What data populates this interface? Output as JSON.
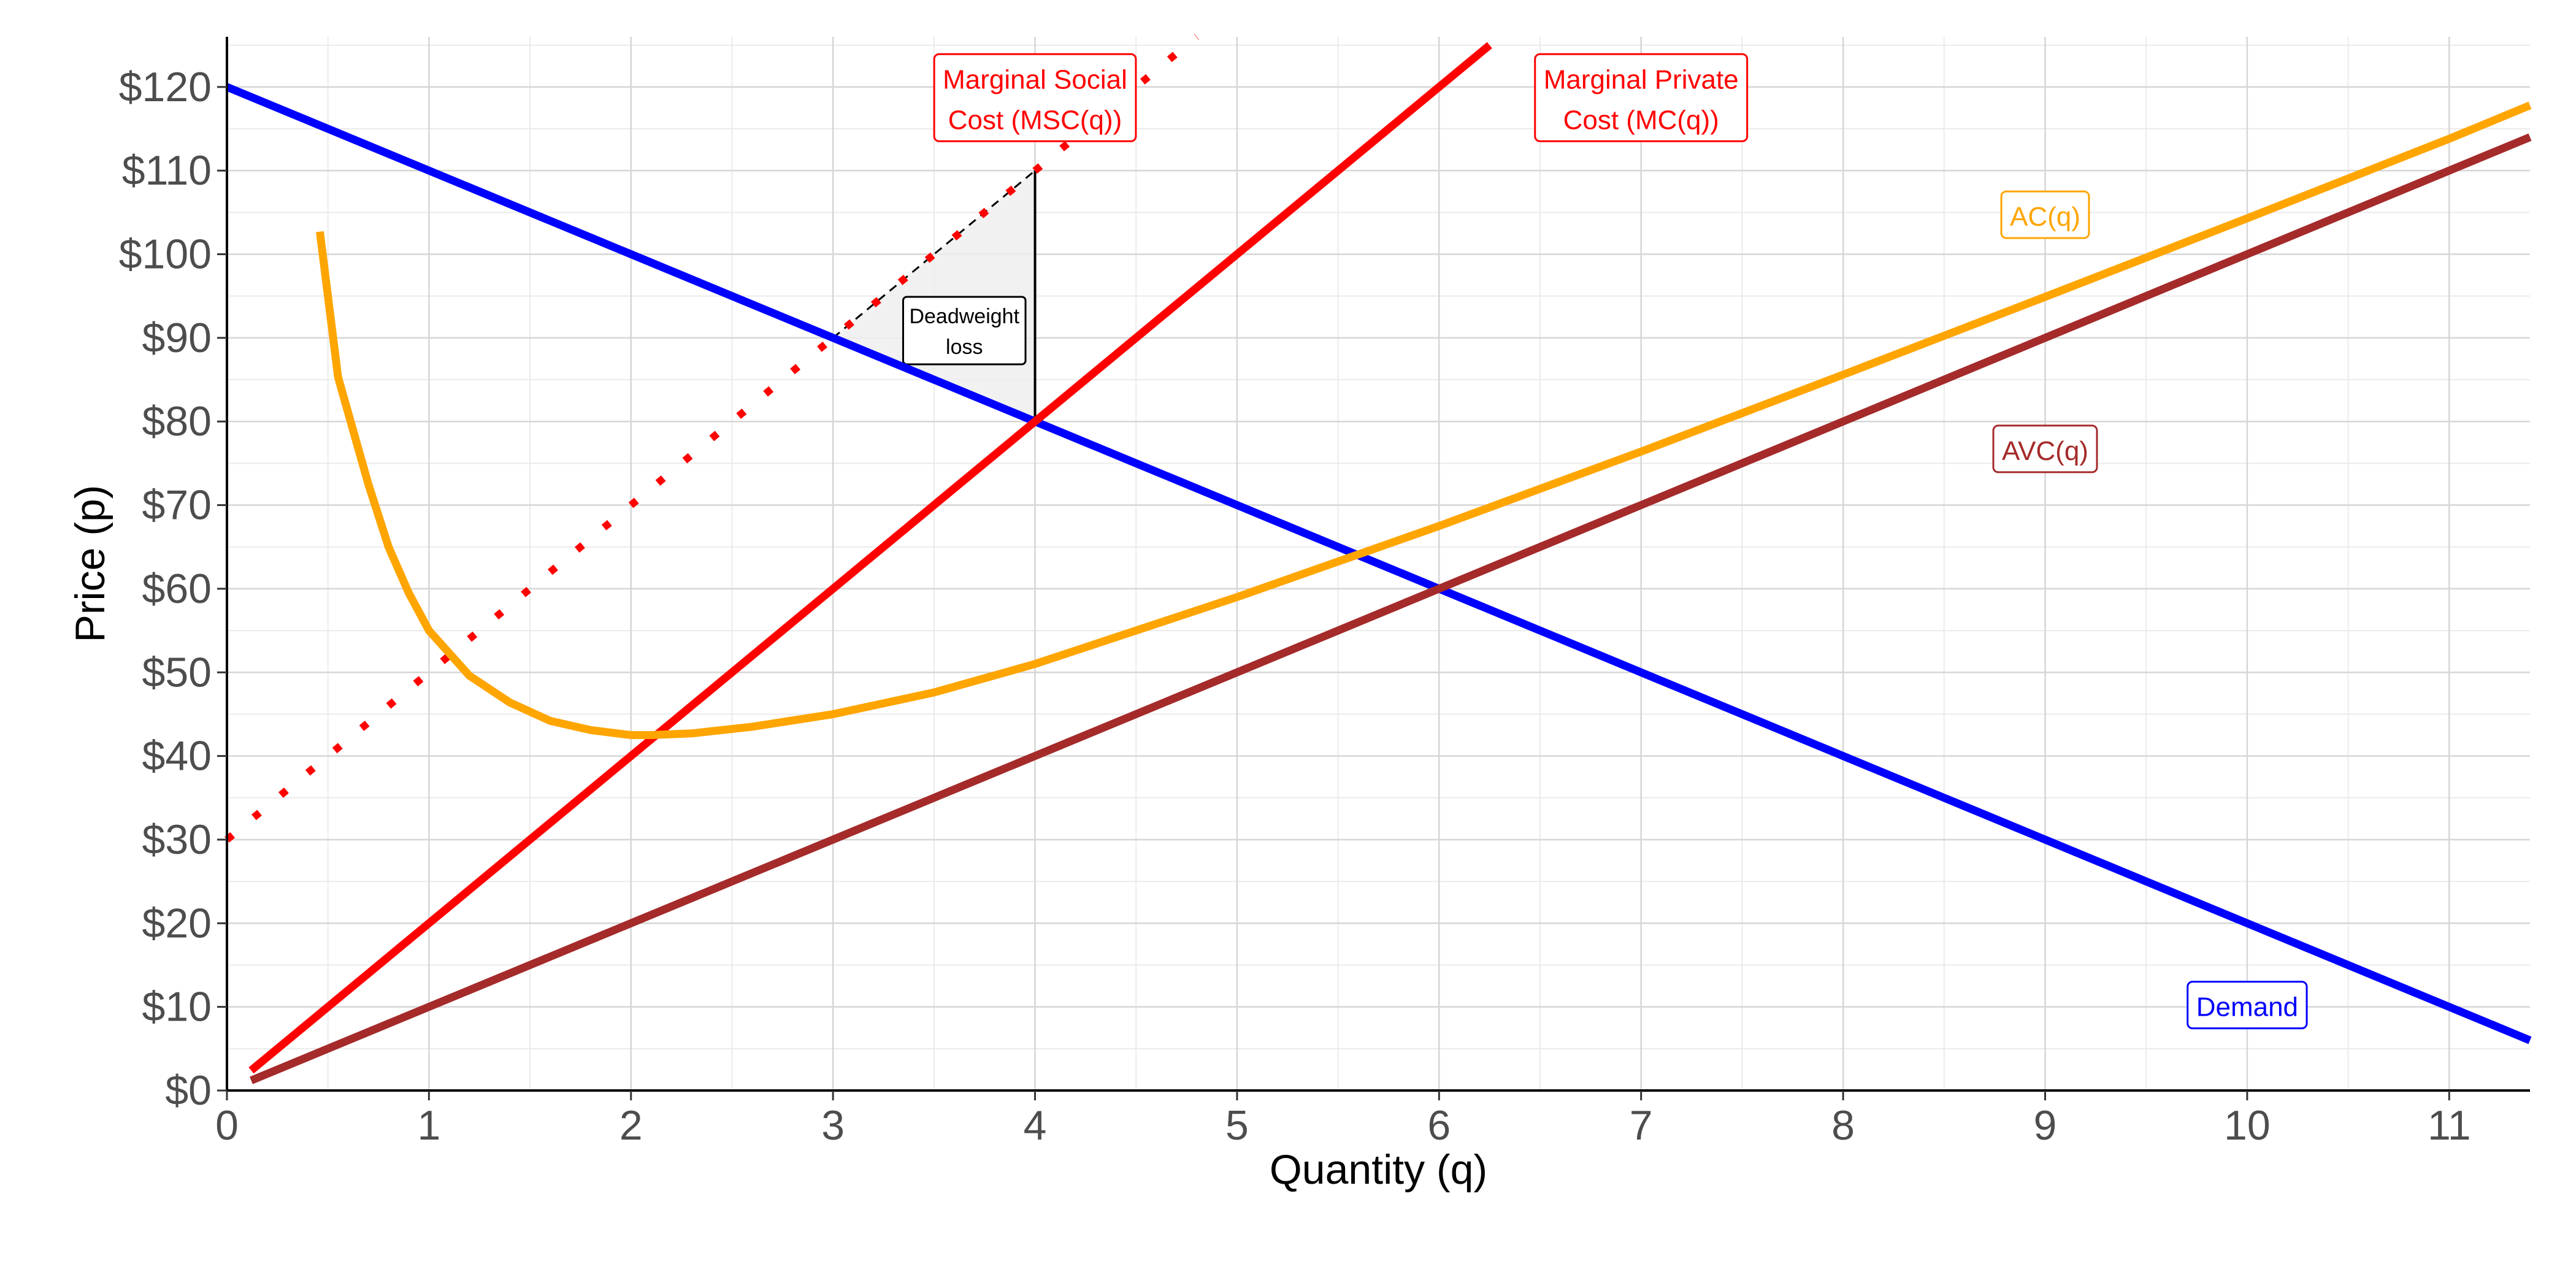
{
  "chart_data": {
    "type": "line",
    "xlabel": "Quantity (q)",
    "ylabel": "Price (p)",
    "xlim": [
      0,
      11.4
    ],
    "ylim": [
      0,
      126
    ],
    "x_ticks": [
      0,
      1,
      2,
      3,
      4,
      5,
      6,
      7,
      8,
      9,
      10,
      11
    ],
    "x_tick_labels": [
      "0",
      "1",
      "2",
      "3",
      "4",
      "5",
      "6",
      "7",
      "8",
      "9",
      "10",
      "11"
    ],
    "y_ticks": [
      0,
      10,
      20,
      30,
      40,
      50,
      60,
      70,
      80,
      90,
      100,
      110,
      120
    ],
    "y_tick_labels": [
      "$0",
      "$10",
      "$20",
      "$30",
      "$40",
      "$50",
      "$60",
      "$70",
      "$80",
      "$90",
      "$100",
      "$110",
      "$120"
    ],
    "grid": true,
    "series": [
      {
        "name": "Demand",
        "color": "#0000ff",
        "style": "solid",
        "x": [
          0,
          11.4
        ],
        "y": [
          120,
          6
        ]
      },
      {
        "name": "Marginal Private Cost (MC(q))",
        "color": "#ff0000",
        "style": "solid",
        "x": [
          0.12,
          6.25
        ],
        "y": [
          2.4,
          125
        ]
      },
      {
        "name": "Marginal Social Cost (MSC(q))",
        "color": "#ff0000",
        "style": "dotted",
        "x": [
          0,
          4.8
        ],
        "y": [
          30,
          126
        ]
      },
      {
        "name": "AVC(q)",
        "color": "#a52a2a",
        "style": "solid",
        "x": [
          0.12,
          11.4
        ],
        "y": [
          1.2,
          114
        ]
      },
      {
        "name": "AC(q)",
        "color": "#ffa500",
        "style": "solid",
        "x": [
          0.46,
          0.55,
          0.7,
          0.8,
          0.9,
          1.0,
          1.2,
          1.4,
          1.6,
          1.8,
          2.0,
          2.1,
          2.3,
          2.6,
          3.0,
          3.5,
          4.0,
          5.0,
          6.0,
          7.0,
          8.0,
          9.0,
          10.0,
          11.0,
          11.4
        ],
        "y": [
          102.7,
          85.3,
          72.5,
          65.0,
          59.5,
          55.0,
          49.6,
          46.4,
          44.2,
          43.1,
          42.5,
          42.5,
          42.7,
          43.5,
          45.0,
          47.6,
          51.0,
          59.0,
          67.5,
          76.4,
          85.6,
          94.9,
          104.3,
          113.8,
          117.8
        ]
      }
    ],
    "labels": [
      {
        "text": [
          "Demand"
        ],
        "color": "#0000ff",
        "x": 10.0,
        "y": 10
      },
      {
        "text": [
          "AVC(q)"
        ],
        "color": "#a52a2a",
        "x": 9.0,
        "y": 76.5
      },
      {
        "text": [
          "AC(q)"
        ],
        "color": "#ffa500",
        "x": 9.0,
        "y": 104.5
      },
      {
        "text": [
          "Marginal Private",
          "Cost (MC(q))"
        ],
        "color": "#ff0000",
        "x": 7.0,
        "y": 118.5
      },
      {
        "text": [
          "Marginal Social",
          "Cost (MSC(q))"
        ],
        "color": "#ff0000",
        "x": 4.0,
        "y": 118.5
      }
    ],
    "deadweight_loss": {
      "label": [
        "Deadweight",
        "loss"
      ],
      "vertices": [
        [
          3,
          90
        ],
        [
          4,
          110
        ],
        [
          4,
          80
        ]
      ]
    }
  }
}
